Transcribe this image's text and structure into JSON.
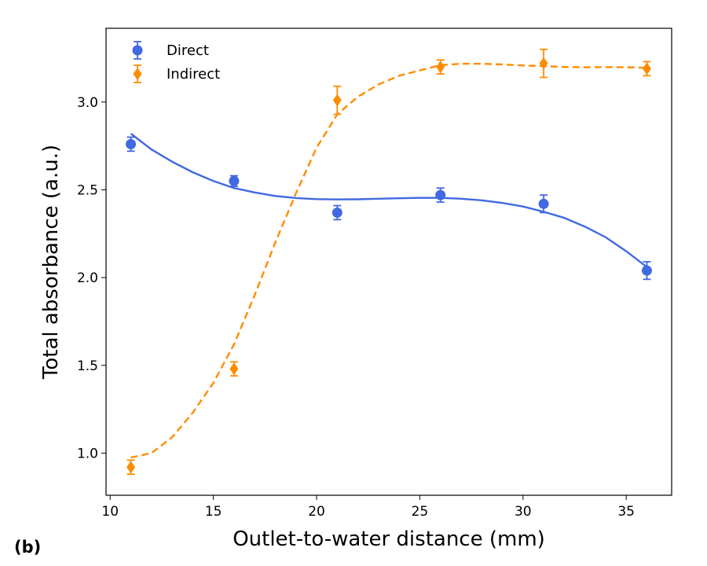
{
  "panel_label": "(b)",
  "chart_data": {
    "type": "scatter",
    "title": "",
    "xlabel": "Outlet-to-water distance (mm)",
    "ylabel": "Total absorbance (a.u.)",
    "xlim": [
      9.8,
      37.2
    ],
    "ylim": [
      0.76,
      3.42
    ],
    "xticks": [
      10,
      15,
      20,
      25,
      30,
      35
    ],
    "xtick_labels": [
      "10",
      "15",
      "20",
      "25",
      "30",
      "35"
    ],
    "yticks": [
      1.0,
      1.5,
      2.0,
      2.5,
      3.0
    ],
    "ytick_labels": [
      "1.0",
      "1.5",
      "2.0",
      "2.5",
      "3.0"
    ],
    "legend_position": "top-left",
    "series": [
      {
        "name": "Direct",
        "color": "#4169E1",
        "marker": "circle",
        "x": [
          11,
          16,
          21,
          26,
          31,
          36
        ],
        "y": [
          2.76,
          2.55,
          2.37,
          2.47,
          2.42,
          2.04
        ],
        "yerr": [
          0.04,
          0.03,
          0.04,
          0.04,
          0.05,
          0.05
        ],
        "fit_style": "solid",
        "fit": {
          "x": [
            11,
            12,
            13,
            14,
            15,
            16,
            17,
            18,
            19,
            20,
            21,
            22,
            23,
            24,
            25,
            26,
            27,
            28,
            29,
            30,
            31,
            32,
            33,
            34,
            35,
            36
          ],
          "y": [
            2.82,
            2.73,
            2.66,
            2.6,
            2.55,
            2.51,
            2.485,
            2.465,
            2.453,
            2.447,
            2.445,
            2.446,
            2.449,
            2.452,
            2.454,
            2.454,
            2.449,
            2.44,
            2.425,
            2.405,
            2.375,
            2.34,
            2.29,
            2.23,
            2.15,
            2.06
          ]
        }
      },
      {
        "name": "Indirect",
        "color": "#FF8C00",
        "marker": "diamond",
        "x": [
          11,
          16,
          21,
          26,
          31,
          36
        ],
        "y": [
          0.92,
          1.48,
          3.01,
          3.2,
          3.22,
          3.19
        ],
        "yerr": [
          0.04,
          0.04,
          0.08,
          0.04,
          0.08,
          0.04
        ],
        "fit_style": "dashed",
        "fit": {
          "x": [
            11,
            12,
            13,
            14,
            15,
            16,
            17,
            18,
            19,
            20,
            21,
            22,
            23,
            24,
            25,
            26,
            27,
            28,
            29,
            30,
            31,
            32,
            33,
            34,
            35,
            36
          ],
          "y": [
            0.975,
            1.0,
            1.09,
            1.23,
            1.4,
            1.62,
            1.9,
            2.2,
            2.48,
            2.74,
            2.93,
            3.03,
            3.1,
            3.15,
            3.18,
            3.21,
            3.218,
            3.218,
            3.214,
            3.208,
            3.205,
            3.2,
            3.198,
            3.199,
            3.198,
            3.195
          ]
        }
      }
    ]
  }
}
